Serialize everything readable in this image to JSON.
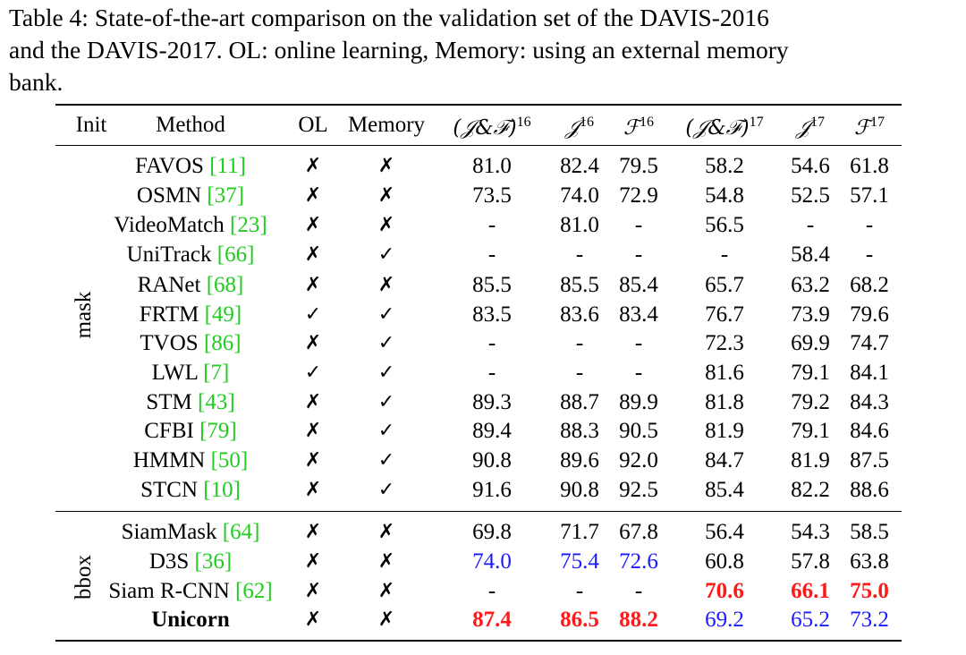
{
  "caption": {
    "lines": [
      "Table 4: State-of-the-art comparison on the validation set of the DAVIS-2016",
      "and the DAVIS-2017. OL: online learning, Memory: using an external memory",
      "bank."
    ]
  },
  "table": {
    "headers": {
      "init": "Init",
      "method": "Method",
      "ol": "OL",
      "memory": "Memory",
      "jf16": "(𝒥&ℱ)",
      "jf16_sup": "16",
      "j16": "𝒥",
      "j16_sup": "16",
      "f16": "ℱ",
      "f16_sup": "16",
      "jf17": "(𝒥&ℱ)",
      "jf17_sup": "17",
      "j17": "𝒥",
      "j17_sup": "17",
      "f17": "ℱ",
      "f17_sup": "17"
    },
    "groups": [
      {
        "label": "mask"
      },
      {
        "label": "bbox"
      }
    ],
    "rows": [
      {
        "name": "FAVOS ",
        "ref": "[11]",
        "ol": "✗",
        "memory": "✗",
        "jf16": "81.0",
        "j16": "82.4",
        "f16": "79.5",
        "jf17": "58.2",
        "j17": "54.6",
        "f17": "61.8"
      },
      {
        "name": "OSMN ",
        "ref": "[37]",
        "ol": "✗",
        "memory": "✗",
        "jf16": "73.5",
        "j16": "74.0",
        "f16": "72.9",
        "jf17": "54.8",
        "j17": "52.5",
        "f17": "57.1"
      },
      {
        "name": "VideoMatch ",
        "ref": "[23]",
        "ol": "✗",
        "memory": "✗",
        "jf16": "-",
        "j16": "81.0",
        "f16": "-",
        "jf17": "56.5",
        "j17": "-",
        "f17": "-"
      },
      {
        "name": "UniTrack ",
        "ref": "[66]",
        "ol": "✗",
        "memory": "✓",
        "jf16": "-",
        "j16": "-",
        "f16": "-",
        "jf17": "-",
        "j17": "58.4",
        "f17": "-"
      },
      {
        "name": "RANet ",
        "ref": "[68]",
        "ol": "✗",
        "memory": "✗",
        "jf16": "85.5",
        "j16": "85.5",
        "f16": "85.4",
        "jf17": "65.7",
        "j17": "63.2",
        "f17": "68.2"
      },
      {
        "name": "FRTM ",
        "ref": "[49]",
        "ol": "✓",
        "memory": "✓",
        "jf16": "83.5",
        "j16": "83.6",
        "f16": "83.4",
        "jf17": "76.7",
        "j17": "73.9",
        "f17": "79.6"
      },
      {
        "name": "TVOS ",
        "ref": "[86]",
        "ol": "✗",
        "memory": "✓",
        "jf16": "-",
        "j16": "-",
        "f16": "-",
        "jf17": "72.3",
        "j17": "69.9",
        "f17": "74.7"
      },
      {
        "name": "LWL ",
        "ref": "[7]",
        "ol": "✓",
        "memory": "✓",
        "jf16": "-",
        "j16": "-",
        "f16": "-",
        "jf17": "81.6",
        "j17": "79.1",
        "f17": "84.1"
      },
      {
        "name": "STM ",
        "ref": "[43]",
        "ol": "✗",
        "memory": "✓",
        "jf16": "89.3",
        "j16": "88.7",
        "f16": "89.9",
        "jf17": "81.8",
        "j17": "79.2",
        "f17": "84.3"
      },
      {
        "name": "CFBI ",
        "ref": "[79]",
        "ol": "✗",
        "memory": "✓",
        "jf16": "89.4",
        "j16": "88.3",
        "f16": "90.5",
        "jf17": "81.9",
        "j17": "79.1",
        "f17": "84.6"
      },
      {
        "name": "HMMN ",
        "ref": "[50]",
        "ol": "✗",
        "memory": "✓",
        "jf16": "90.8",
        "j16": "89.6",
        "f16": "92.0",
        "jf17": "84.7",
        "j17": "81.9",
        "f17": "87.5"
      },
      {
        "name": "STCN ",
        "ref": "[10]",
        "ol": "✗",
        "memory": "✓",
        "jf16": "91.6",
        "j16": "90.8",
        "f16": "92.5",
        "jf17": "85.4",
        "j17": "82.2",
        "f17": "88.6"
      },
      {
        "name": "SiamMask ",
        "ref": "[64]",
        "ol": "✗",
        "memory": "✗",
        "jf16": "69.8",
        "j16": "71.7",
        "f16": "67.8",
        "jf17": "56.4",
        "j17": "54.3",
        "f17": "58.5"
      },
      {
        "name": "D3S ",
        "ref": "[36]",
        "ol": "✗",
        "memory": "✗",
        "jf16": "74.0",
        "j16": "75.4",
        "f16": "72.6",
        "jf17": "60.8",
        "j17": "57.8",
        "f17": "63.8",
        "blue": [
          "jf16",
          "j16",
          "f16"
        ]
      },
      {
        "name": "Siam R-CNN ",
        "ref": "[62]",
        "ol": "✗",
        "memory": "✗",
        "jf16": "-",
        "j16": "-",
        "f16": "-",
        "jf17": "70.6",
        "j17": "66.1",
        "f17": "75.0",
        "red": [
          "jf17",
          "j17",
          "f17"
        ]
      },
      {
        "name": "Unicorn",
        "ref": "",
        "ol": "✗",
        "memory": "✗",
        "jf16": "87.4",
        "j16": "86.5",
        "f16": "88.2",
        "jf17": "69.2",
        "j17": "65.2",
        "f17": "73.2",
        "bold": true,
        "red": [
          "jf16",
          "j16",
          "f16"
        ],
        "blue": [
          "jf17",
          "j17",
          "f17"
        ]
      }
    ]
  }
}
